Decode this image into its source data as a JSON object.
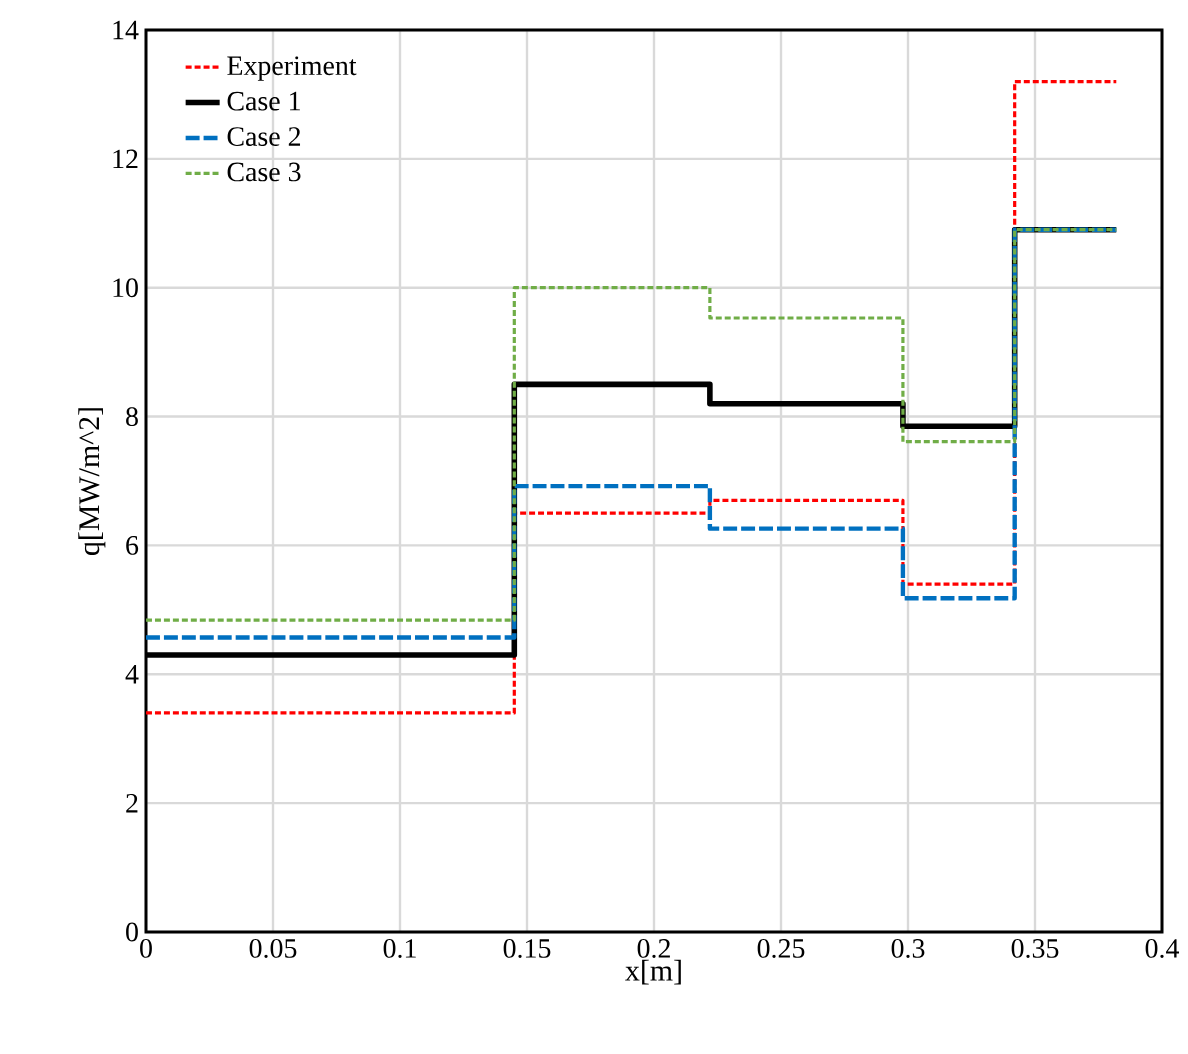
{
  "chart_data": {
    "type": "step",
    "xlabel": "x[m]",
    "ylabel": "q[MW/m^2]",
    "x": [
      0,
      0.145,
      0.222,
      0.298,
      0.342,
      0.382
    ],
    "series": [
      {
        "name": "Experiment",
        "color": "#ff0000",
        "line_style": "dotted",
        "values": [
          3.4,
          6.5,
          6.7,
          5.4,
          13.2,
          13.2
        ]
      },
      {
        "name": "Case 1",
        "color": "#000000",
        "line_style": "solid",
        "values": [
          4.3,
          8.5,
          8.2,
          7.85,
          10.9,
          10.9
        ]
      },
      {
        "name": "Case 2",
        "color": "#0070c0",
        "line_style": "dashed",
        "values": [
          4.57,
          6.92,
          6.26,
          5.18,
          10.9,
          10.9
        ]
      },
      {
        "name": "Case 3",
        "color": "#70ad47",
        "line_style": "dotted",
        "values": [
          4.84,
          10.0,
          9.53,
          7.61,
          10.9,
          10.9
        ]
      }
    ],
    "xlim": [
      0,
      0.4
    ],
    "ylim": [
      0,
      14
    ],
    "xticks": [
      0,
      0.05,
      0.1,
      0.15,
      0.2,
      0.25,
      0.3,
      0.35,
      0.4
    ],
    "yticks": [
      0,
      2,
      4,
      6,
      8,
      10,
      12,
      14
    ],
    "grid": true,
    "legend": "top left",
    "marker": "none"
  }
}
